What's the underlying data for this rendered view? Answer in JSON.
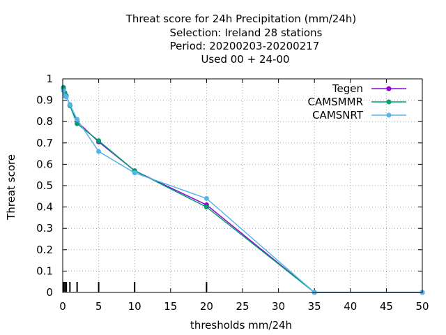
{
  "chart_data": {
    "type": "line",
    "title_lines": [
      "Threat score  for 24h Precipitation (mm/24h)",
      "Selection: Ireland      28 stations",
      "Period: 20200203-20200217",
      "Used  00 + 24-00"
    ],
    "xlabel": "thresholds mm/24h",
    "ylabel": "Threat score",
    "xlim": [
      0,
      50
    ],
    "ylim": [
      0,
      1
    ],
    "xticks": [
      0,
      5,
      10,
      15,
      20,
      25,
      30,
      35,
      40,
      45,
      50
    ],
    "yticks": [
      0,
      0.1,
      0.2,
      0.3,
      0.4,
      0.5,
      0.6,
      0.7,
      0.8,
      0.9,
      1
    ],
    "ytick_labels": [
      "0",
      "0.1",
      "0.2",
      "0.3",
      "0.4",
      "0.5",
      "0.6",
      "0.7",
      "0.8",
      "0.9",
      "1"
    ],
    "threshold_marks": [
      0.1,
      0.3,
      0.5,
      1,
      2,
      5,
      10,
      20
    ],
    "grid": true,
    "legend_position": "top-right",
    "series": [
      {
        "name": "Tegen",
        "color": "#9400d3",
        "x": [
          0.1,
          0.3,
          0.5,
          1,
          2,
          5,
          10,
          20,
          35,
          50
        ],
        "y": [
          0.955,
          0.93,
          0.92,
          0.875,
          0.8,
          0.705,
          0.57,
          0.41,
          0.0,
          0.0
        ]
      },
      {
        "name": "CAMSMMR",
        "color": "#009e73",
        "x": [
          0.1,
          0.3,
          0.5,
          1,
          2,
          5,
          10,
          20,
          35,
          50
        ],
        "y": [
          0.96,
          0.935,
          0.92,
          0.875,
          0.79,
          0.71,
          0.57,
          0.4,
          0.0,
          0.0
        ]
      },
      {
        "name": "CAMSNRT",
        "color": "#56b4e9",
        "x": [
          0.1,
          0.3,
          0.5,
          1,
          2,
          5,
          10,
          20,
          35,
          50
        ],
        "y": [
          0.945,
          0.92,
          0.915,
          0.88,
          0.81,
          0.66,
          0.56,
          0.44,
          0.0,
          0.0
        ]
      }
    ]
  }
}
